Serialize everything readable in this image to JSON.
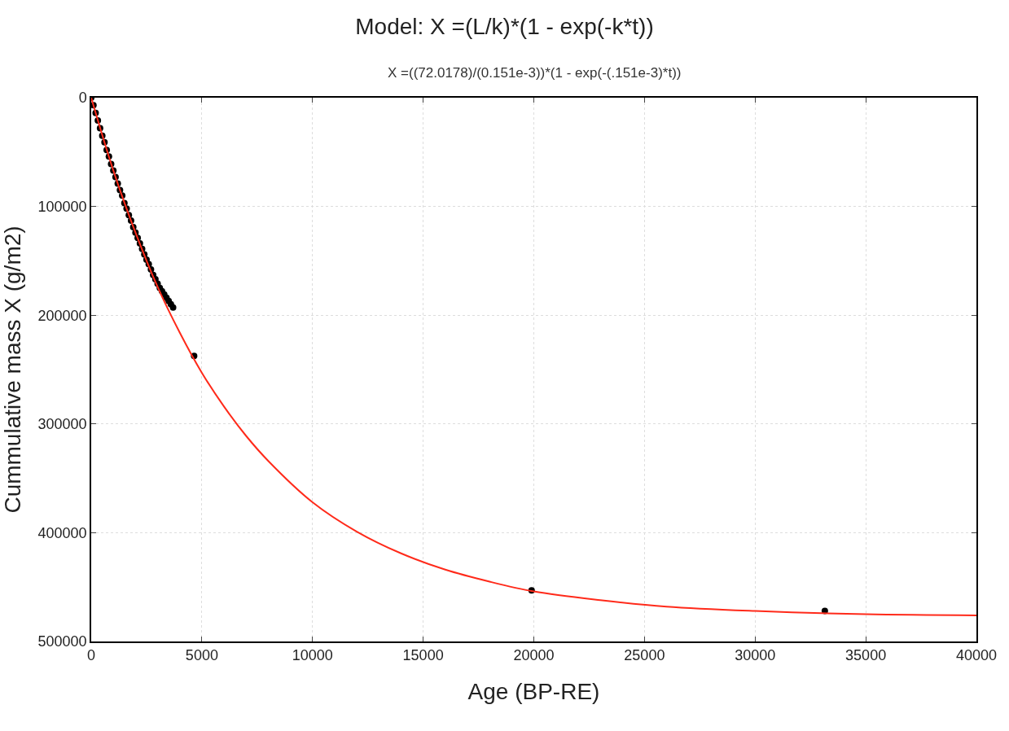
{
  "chart_data": {
    "type": "scatter",
    "title": "Model: X =(L/k)*(1 - exp(-k*t))",
    "subtitle": "X =((72.0178)/(0.151e-3))*(1 - exp(-(.151e-3)*t))",
    "xlabel": "Age (BP-RE)",
    "ylabel": "Cummulative mass X (g/m2)",
    "xlim": [
      0,
      40000
    ],
    "xticks": [
      0,
      5000,
      10000,
      15000,
      20000,
      25000,
      30000,
      35000,
      40000
    ],
    "ylim": [
      500000,
      0
    ],
    "yticks": [
      0,
      100000,
      200000,
      300000,
      400000,
      500000
    ],
    "grid": true,
    "series": [
      {
        "marker": "circle",
        "color": "#000000",
        "x": [
          0,
          100,
          200,
          300,
          400,
          500,
          600,
          700,
          800,
          900,
          1000,
          1100,
          1200,
          1300,
          1400,
          1500,
          1600,
          1700,
          1800,
          1900,
          2000,
          2100,
          2200,
          2300,
          2400,
          2500,
          2600,
          2700,
          2800,
          2900,
          3000,
          3100,
          3200,
          3300,
          3400,
          3500,
          3600,
          3700,
          4650,
          19900,
          33150
        ],
        "values": [
          0,
          7000,
          14000,
          21000,
          28000,
          35000,
          41000,
          48000,
          54000,
          61000,
          67000,
          73000,
          79000,
          85000,
          90000,
          97000,
          102000,
          108000,
          113000,
          119000,
          124000,
          129000,
          134000,
          139000,
          144000,
          149000,
          153000,
          158000,
          163000,
          167000,
          171000,
          175000,
          178000,
          181000,
          184000,
          187000,
          190000,
          193000,
          237500,
          453000,
          472000
        ]
      },
      {
        "type": "line",
        "marker": "none",
        "color": "#ff2a1a",
        "line_style": "solid",
        "x": [
          0,
          1000,
          2000,
          3000,
          4000,
          5000,
          6000,
          7000,
          8000,
          10000,
          12000,
          14000,
          16000,
          18000,
          20000,
          23000,
          26000,
          30000,
          35000,
          40000
        ],
        "values": [
          0,
          67000,
          124000,
          174000,
          216000,
          253000,
          284000,
          311000,
          334000,
          372000,
          399000,
          419000,
          434000,
          445000,
          454000,
          462000,
          468000,
          472000,
          475000,
          476000
        ]
      }
    ]
  }
}
